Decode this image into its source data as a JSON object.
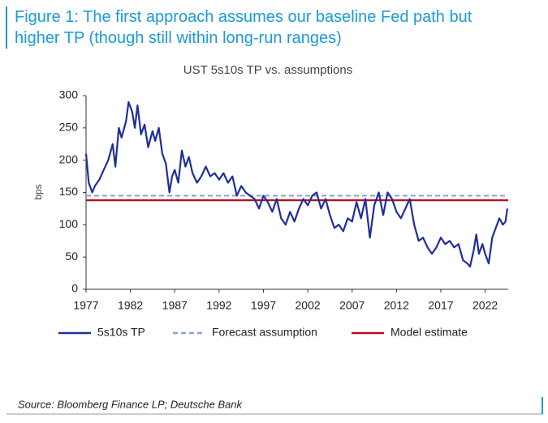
{
  "figure_title": "Figure 1: The first approach assumes our baseline Fed path but higher TP (though still within long-run ranges)",
  "source": "Source: Bloomberg Finance LP; Deutsche Bank",
  "chart_data": {
    "type": "line",
    "title": "UST 5s10s TP vs. assumptions",
    "y_label": "bps",
    "xlim": [
      1977,
      2024.6
    ],
    "xticks": [
      1977,
      1982,
      1987,
      1992,
      1997,
      2002,
      2007,
      2012,
      2017,
      2022
    ],
    "ylim": [
      0,
      300
    ],
    "yticks": [
      0,
      50,
      100,
      150,
      200,
      250,
      300
    ],
    "grid": false,
    "legend": "bottom",
    "series": [
      {
        "name": "5s10s TP",
        "color": "#1f2f9a",
        "style": "solid",
        "x": [
          1977,
          1977.3,
          1977.7,
          1978,
          1978.5,
          1979,
          1979.5,
          1980,
          1980.3,
          1980.7,
          1981,
          1981.5,
          1981.8,
          1982.2,
          1982.5,
          1982.8,
          1983.2,
          1983.6,
          1984,
          1984.5,
          1984.8,
          1985.2,
          1985.6,
          1986,
          1986.4,
          1986.7,
          1987,
          1987.4,
          1987.8,
          1988.2,
          1988.6,
          1989,
          1989.5,
          1990,
          1990.5,
          1991,
          1991.5,
          1992,
          1992.5,
          1993,
          1993.5,
          1994,
          1994.5,
          1995,
          1995.5,
          1996,
          1996.5,
          1997,
          1997.5,
          1998,
          1998.5,
          1999,
          1999.5,
          2000,
          2000.5,
          2001,
          2001.5,
          2002,
          2002.5,
          2003,
          2003.5,
          2004,
          2004.5,
          2005,
          2005.5,
          2006,
          2006.5,
          2007,
          2007.5,
          2008,
          2008.5,
          2009,
          2009.5,
          2010,
          2010.5,
          2011,
          2011.5,
          2012,
          2012.5,
          2013,
          2013.5,
          2014,
          2014.5,
          2015,
          2015.5,
          2016,
          2016.5,
          2017,
          2017.5,
          2018,
          2018.5,
          2019,
          2019.5,
          2020,
          2020.3,
          2020.7,
          2021,
          2021.3,
          2021.7,
          2022,
          2022.4,
          2022.8,
          2023.2,
          2023.6,
          2024,
          2024.3,
          2024.5
        ],
        "values": [
          210,
          165,
          150,
          160,
          170,
          185,
          200,
          225,
          190,
          250,
          235,
          260,
          290,
          275,
          250,
          285,
          240,
          255,
          220,
          245,
          230,
          250,
          210,
          195,
          150,
          175,
          185,
          165,
          215,
          190,
          205,
          180,
          165,
          175,
          190,
          175,
          180,
          170,
          180,
          165,
          175,
          145,
          160,
          150,
          145,
          140,
          125,
          145,
          135,
          120,
          140,
          110,
          100,
          120,
          105,
          125,
          140,
          130,
          145,
          150,
          125,
          140,
          115,
          95,
          100,
          90,
          110,
          105,
          135,
          110,
          140,
          80,
          130,
          150,
          115,
          150,
          140,
          120,
          110,
          125,
          140,
          100,
          75,
          80,
          65,
          55,
          65,
          80,
          70,
          75,
          65,
          70,
          45,
          40,
          35,
          60,
          85,
          55,
          70,
          55,
          40,
          80,
          95,
          110,
          100,
          105,
          125
        ]
      },
      {
        "name": "Forecast assumption",
        "color": "#8a9fe0",
        "style": "dashed",
        "x": [
          1977,
          2024.6
        ],
        "values": [
          145,
          145
        ]
      },
      {
        "name": "Model estimate",
        "color": "#b0101a",
        "style": "solid",
        "x": [
          1977,
          2024.6
        ],
        "values": [
          138,
          138
        ]
      }
    ]
  }
}
